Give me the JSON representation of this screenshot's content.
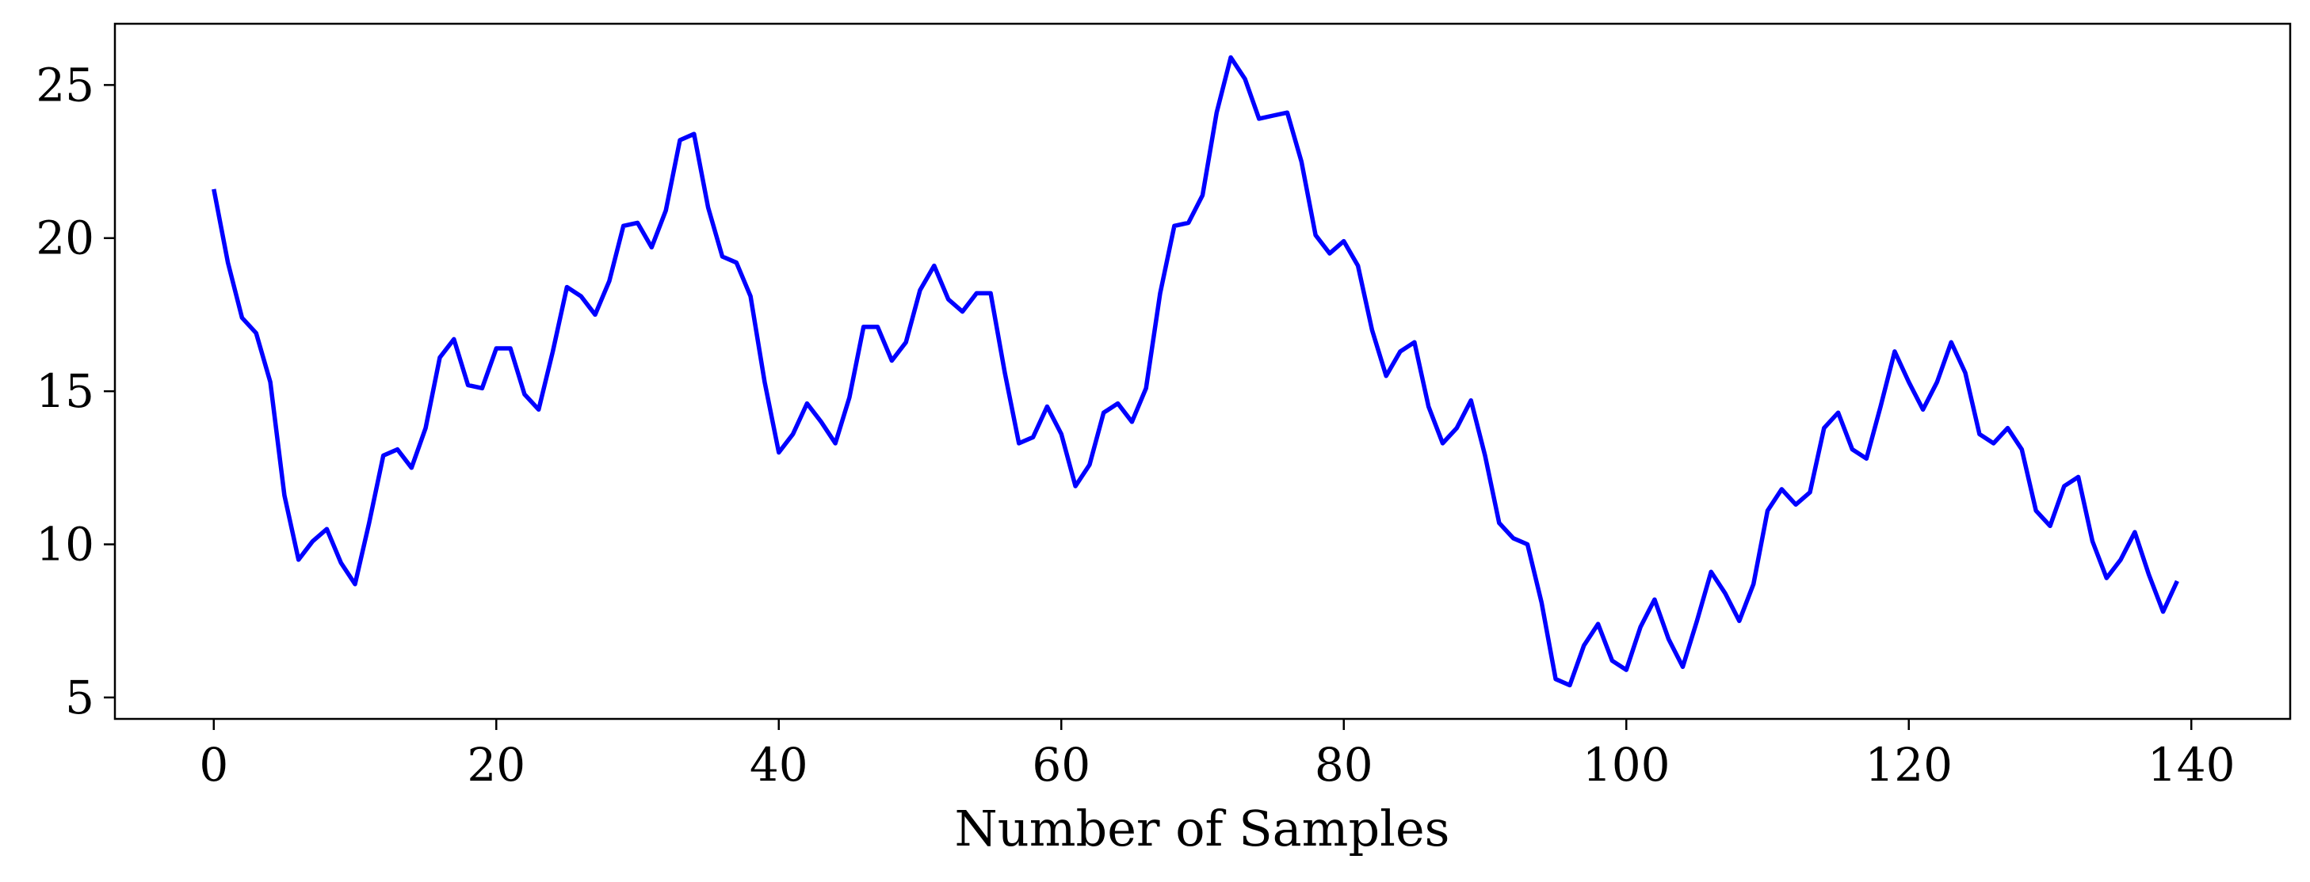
{
  "chart_data": {
    "type": "line",
    "title": "",
    "xlabel": "Number of Samples",
    "ylabel": "",
    "xlim": [
      -7,
      147
    ],
    "ylim": [
      4.3,
      27.0
    ],
    "xticks": [
      0,
      20,
      40,
      60,
      80,
      100,
      120,
      140
    ],
    "yticks": [
      5,
      10,
      15,
      20,
      25
    ],
    "grid": false,
    "series": [
      {
        "color": "#0000ff",
        "x": [
          0,
          1,
          2,
          3,
          4,
          5,
          6,
          7,
          8,
          9,
          10,
          11,
          12,
          13,
          14,
          15,
          16,
          17,
          18,
          19,
          20,
          21,
          22,
          23,
          24,
          25,
          26,
          27,
          28,
          29,
          30,
          31,
          32,
          33,
          34,
          35,
          36,
          37,
          38,
          39,
          40,
          41,
          42,
          43,
          44,
          45,
          46,
          47,
          48,
          49,
          50,
          51,
          52,
          53,
          54,
          55,
          56,
          57,
          58,
          59,
          60,
          61,
          62,
          63,
          64,
          65,
          66,
          67,
          68,
          69,
          70,
          71,
          72,
          73,
          74,
          75,
          76,
          77,
          78,
          79,
          80,
          81,
          82,
          83,
          84,
          85,
          86,
          87,
          88,
          89,
          90,
          91,
          92,
          93,
          94,
          95,
          96,
          97,
          98,
          99,
          100,
          101,
          102,
          103,
          104,
          105,
          106,
          107,
          108,
          109,
          110,
          111,
          112,
          113,
          114,
          115,
          116,
          117,
          118,
          119,
          120,
          121,
          122,
          123,
          124,
          125,
          126,
          127,
          128,
          129,
          130,
          131,
          132,
          133,
          134,
          135,
          136,
          137,
          138,
          139
        ],
        "y": [
          21.6,
          19.2,
          17.4,
          16.9,
          15.3,
          11.6,
          9.5,
          10.1,
          10.5,
          9.4,
          8.7,
          10.7,
          12.9,
          13.1,
          12.5,
          13.8,
          16.1,
          16.7,
          15.2,
          15.1,
          16.4,
          16.4,
          14.9,
          14.4,
          16.3,
          18.4,
          18.1,
          17.5,
          18.6,
          20.4,
          20.5,
          19.7,
          20.9,
          23.2,
          23.4,
          21.0,
          19.4,
          19.2,
          18.1,
          15.3,
          13.0,
          13.6,
          14.6,
          14.0,
          13.3,
          14.8,
          17.1,
          17.1,
          16.0,
          16.6,
          18.3,
          19.1,
          18.0,
          17.6,
          18.2,
          18.2,
          15.6,
          13.3,
          13.5,
          14.5,
          13.6,
          11.9,
          12.6,
          14.3,
          14.6,
          14.0,
          15.1,
          18.2,
          20.4,
          20.5,
          21.4,
          24.1,
          25.9,
          25.2,
          23.9,
          24.0,
          24.1,
          22.5,
          20.1,
          19.5,
          19.9,
          19.1,
          17.0,
          15.5,
          16.3,
          16.6,
          14.5,
          13.3,
          13.8,
          14.7,
          12.9,
          10.7,
          10.2,
          10.0,
          8.1,
          5.6,
          5.4,
          6.7,
          7.4,
          6.2,
          5.9,
          7.3,
          8.2,
          6.9,
          6.0,
          7.5,
          9.1,
          8.4,
          7.5,
          8.7,
          11.1,
          11.8,
          11.3,
          11.7,
          13.8,
          14.3,
          13.1,
          12.8,
          14.5,
          16.3,
          15.3,
          14.4,
          15.3,
          16.6,
          15.6,
          13.6,
          13.3,
          13.8,
          13.1,
          11.1,
          10.6,
          11.9,
          12.2,
          10.1,
          8.9,
          9.5,
          10.4,
          9.0,
          7.8,
          8.8
        ]
      }
    ]
  }
}
